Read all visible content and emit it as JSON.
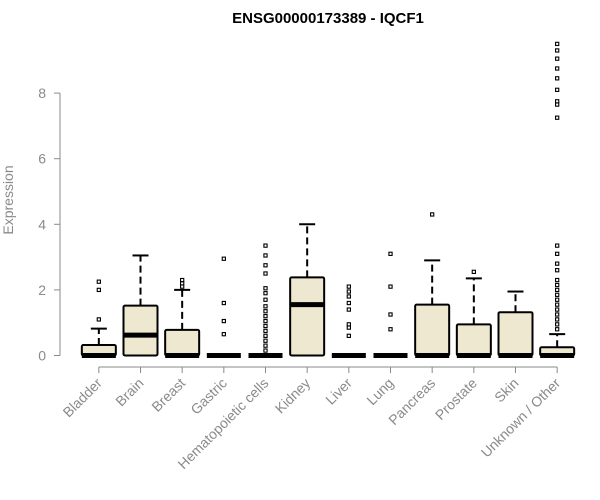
{
  "chart_data": {
    "type": "boxplot",
    "title": "ENSG00000173389 - IQCF1",
    "ylabel": "Expression",
    "xlabel": "",
    "ylim": [
      0,
      9.5
    ],
    "yticks": [
      0,
      2,
      4,
      6,
      8
    ],
    "grid": false,
    "box_fill": "#efe8d0",
    "box_stroke": "#000000",
    "axis_color": "#8a8a8a",
    "categories": [
      "Bladder",
      "Brain",
      "Breast",
      "Gastric",
      "Hematopoietic cells",
      "Kidney",
      "Liver",
      "Lung",
      "Pancreas",
      "Prostate",
      "Skin",
      "Unknown / Other"
    ],
    "boxes": [
      {
        "q1": 0,
        "median": 0,
        "q3": 0.32,
        "whisker_low": 0,
        "whisker_high": 0.82,
        "outliers": [
          1.1,
          2.0,
          2.25
        ]
      },
      {
        "q1": 0,
        "median": 0.62,
        "q3": 1.52,
        "whisker_low": 0,
        "whisker_high": 3.05,
        "outliers": []
      },
      {
        "q1": 0,
        "median": 0,
        "q3": 0.78,
        "whisker_low": 0,
        "whisker_high": 2.0,
        "outliers": [
          2.1,
          2.2,
          2.3
        ]
      },
      {
        "q1": 0,
        "median": 0,
        "q3": 0,
        "whisker_low": 0,
        "whisker_high": 0,
        "outliers": [
          0.65,
          1.05,
          1.6,
          2.95
        ]
      },
      {
        "q1": 0,
        "median": 0,
        "q3": 0,
        "whisker_low": 0,
        "whisker_high": 0,
        "outliers": [
          0.15,
          0.3,
          0.45,
          0.6,
          0.75,
          0.9,
          1.05,
          1.2,
          1.35,
          1.5,
          1.7,
          1.9,
          2.05,
          2.5,
          2.75,
          3.05,
          3.35
        ]
      },
      {
        "q1": 0,
        "median": 1.55,
        "q3": 2.38,
        "whisker_low": 0,
        "whisker_high": 4.0,
        "outliers": []
      },
      {
        "q1": 0,
        "median": 0,
        "q3": 0,
        "whisker_low": 0,
        "whisker_high": 0,
        "outliers": [
          0.6,
          0.85,
          0.95,
          1.4,
          1.6,
          1.8,
          1.95,
          2.1
        ]
      },
      {
        "q1": 0,
        "median": 0,
        "q3": 0,
        "whisker_low": 0,
        "whisker_high": 0,
        "outliers": [
          0.8,
          1.25,
          2.1,
          3.1
        ]
      },
      {
        "q1": 0,
        "median": 0,
        "q3": 1.55,
        "whisker_low": 0,
        "whisker_high": 2.9,
        "outliers": [
          4.3
        ]
      },
      {
        "q1": 0,
        "median": 0,
        "q3": 0.95,
        "whisker_low": 0,
        "whisker_high": 2.35,
        "outliers": [
          2.55
        ]
      },
      {
        "q1": 0,
        "median": 0,
        "q3": 1.32,
        "whisker_low": 0,
        "whisker_high": 1.95,
        "outliers": []
      },
      {
        "q1": 0,
        "median": 0,
        "q3": 0.25,
        "whisker_low": 0,
        "whisker_high": 0.65,
        "outliers": [
          0.8,
          0.95,
          1.1,
          1.25,
          1.4,
          1.55,
          1.7,
          1.85,
          2.0,
          2.15,
          2.3,
          2.6,
          2.8,
          3.1,
          3.35,
          7.25,
          7.65,
          7.75,
          8.1,
          8.45,
          8.75,
          9.05,
          9.3,
          9.5
        ]
      }
    ]
  }
}
